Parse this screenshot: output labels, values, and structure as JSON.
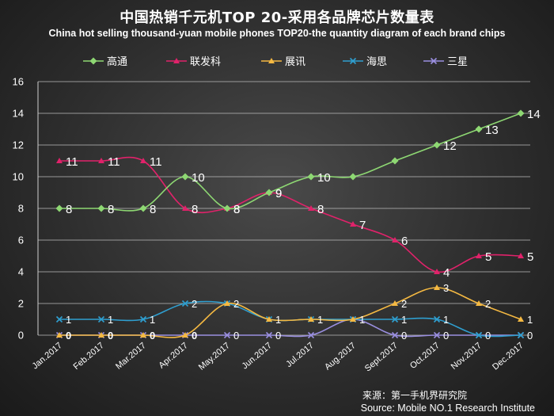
{
  "chart_data": {
    "type": "line",
    "title": "中国热销千元机TOP 20-采用各品牌芯片数量表",
    "subtitle": "China hot selling thousand-yuan mobile phones TOP20-the quantity diagram of each brand chips",
    "categories": [
      "Jan.2017",
      "Feb.2017",
      "Mar.2017",
      "Apr.2017",
      "May.2017",
      "Jun.2017",
      "Jul.2017",
      "Aug.2017",
      "Sept.2017",
      "Oct.2017",
      "Nov.2017",
      "Dec.2017"
    ],
    "ylim": [
      0,
      16
    ],
    "yticks": [
      "0",
      "2",
      "4",
      "6",
      "8",
      "10",
      "12",
      "14",
      "16"
    ],
    "legend_position": "top",
    "series": [
      {
        "name": "高通",
        "color": "#8ed873",
        "marker": "diamond",
        "values": [
          8,
          8,
          8,
          10,
          8,
          9,
          10,
          10,
          11,
          12,
          13,
          14
        ],
        "labels": [
          "8",
          "8",
          "8",
          "10",
          "8",
          "9",
          "10",
          "",
          "",
          "12",
          "13",
          "14"
        ]
      },
      {
        "name": "联发科",
        "color": "#e0226a",
        "marker": "triangle",
        "values": [
          11,
          11,
          11,
          8,
          8,
          9,
          8,
          7,
          6,
          4,
          5,
          5
        ],
        "labels": [
          "11",
          "11",
          "11",
          "8",
          "8",
          "9",
          "8",
          "7",
          "6",
          "4",
          "5",
          "5"
        ]
      },
      {
        "name": "展讯",
        "color": "#f5b942",
        "marker": "triangle",
        "values": [
          0,
          0,
          0,
          0,
          2,
          1,
          1,
          1,
          2,
          3,
          2,
          1
        ],
        "labels": [
          "0",
          "0",
          "0",
          "0",
          "2",
          "1",
          "1",
          "1",
          "2",
          "3",
          "2",
          "1"
        ]
      },
      {
        "name": "海思",
        "color": "#2f9fd0",
        "marker": "x",
        "values": [
          1,
          1,
          1,
          2,
          2,
          1,
          1,
          1,
          1,
          1,
          0,
          0
        ],
        "labels": [
          "1",
          "1",
          "1",
          "2",
          "",
          "",
          "",
          "",
          "1",
          "1",
          "0",
          "0"
        ]
      },
      {
        "name": "三星",
        "color": "#9a8fe0",
        "marker": "x",
        "values": [
          0,
          0,
          0,
          0,
          0,
          0,
          0,
          1,
          0,
          0,
          0,
          0
        ],
        "labels": [
          "",
          "",
          "",
          "",
          "0",
          "0",
          "",
          "",
          "0",
          "0",
          "",
          ""
        ]
      }
    ]
  },
  "source": {
    "cn": "来源：第一手机界研究院",
    "en": "Source: Mobile NO.1 Research Institute"
  }
}
